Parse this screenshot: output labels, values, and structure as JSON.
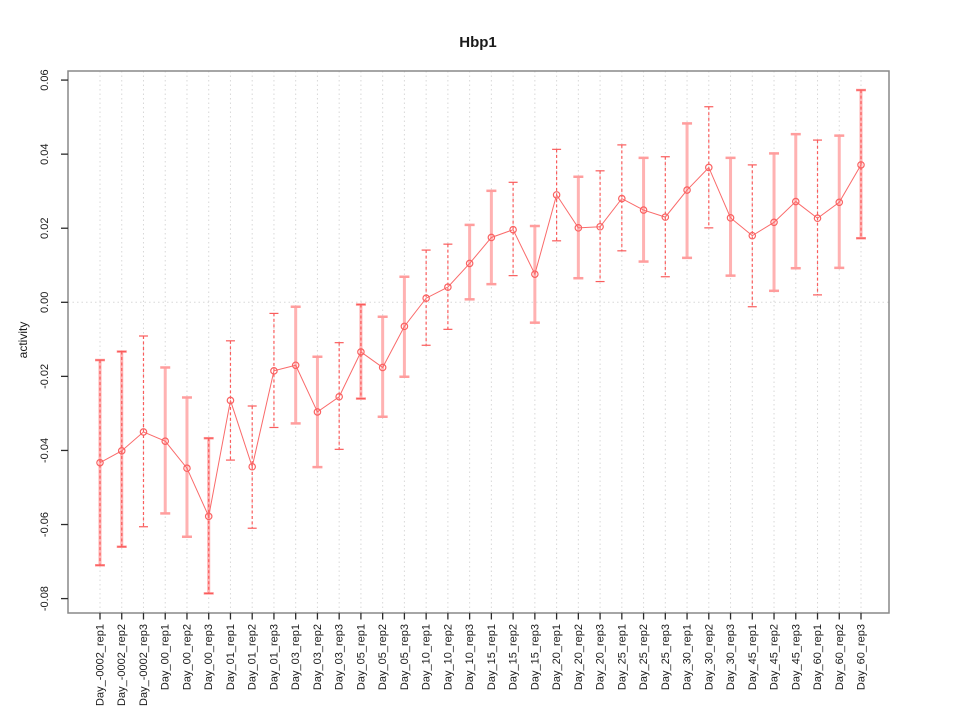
{
  "chart_data": {
    "type": "line",
    "title": "Hbp1",
    "xlabel": "",
    "ylabel": "activity",
    "ylim": [
      -0.085,
      0.063
    ],
    "ytick_labels": [
      "0.06",
      "0.04",
      "0.02",
      "0.00",
      "-0.02",
      "-0.04",
      "-0.06",
      "-0.08"
    ],
    "ytick_values": [
      0.06,
      0.04,
      0.02,
      0.0,
      -0.02,
      -0.04,
      -0.06,
      -0.08
    ],
    "grid": "vertical dotted gridline at every category; horizontal dotted line at y=0",
    "legend": "none",
    "categories": [
      "Day_-0002_rep1",
      "Day_-0002_rep2",
      "Day_-0002_rep3",
      "Day_00_rep1",
      "Day_00_rep2",
      "Day_00_rep3",
      "Day_01_rep1",
      "Day_01_rep2",
      "Day_01_rep3",
      "Day_03_rep1",
      "Day_03_rep2",
      "Day_03_rep3",
      "Day_05_rep1",
      "Day_05_rep2",
      "Day_05_rep3",
      "Day_10_rep1",
      "Day_10_rep2",
      "Day_10_rep3",
      "Day_15_rep1",
      "Day_15_rep2",
      "Day_15_rep3",
      "Day_20_rep1",
      "Day_20_rep2",
      "Day_20_rep3",
      "Day_25_rep1",
      "Day_25_rep2",
      "Day_25_rep3",
      "Day_30_rep1",
      "Day_30_rep2",
      "Day_30_rep3",
      "Day_45_rep1",
      "Day_45_rep2",
      "Day_45_rep3",
      "Day_60_rep1",
      "Day_60_rep2",
      "Day_60_rep3"
    ],
    "series": [
      {
        "name": "activity",
        "marker": "open-circle",
        "values": [
          -0.0433,
          -0.0401,
          -0.035,
          -0.0375,
          -0.0448,
          -0.0578,
          -0.0265,
          -0.0444,
          -0.0185,
          -0.017,
          -0.0296,
          -0.0255,
          -0.0134,
          -0.0176,
          -0.0065,
          0.0011,
          0.0041,
          0.0105,
          0.0175,
          0.0196,
          0.0076,
          0.029,
          0.0201,
          0.0204,
          0.028,
          0.0249,
          0.023,
          0.0303,
          0.0364,
          0.0228,
          0.018,
          0.0216,
          0.0272,
          0.0227,
          0.027,
          0.0371
        ],
        "error_low": [
          -0.071,
          -0.066,
          -0.0606,
          -0.057,
          -0.0633,
          -0.0786,
          -0.0426,
          -0.061,
          -0.0338,
          -0.0327,
          -0.0445,
          -0.0397,
          -0.026,
          -0.0309,
          -0.0201,
          -0.0116,
          -0.0073,
          0.0008,
          0.0049,
          0.0072,
          -0.0055,
          0.0166,
          0.0065,
          0.0056,
          0.0139,
          0.011,
          0.0069,
          0.012,
          0.0201,
          0.0072,
          -0.0012,
          0.0031,
          0.0092,
          0.002,
          0.0093,
          0.0173
        ],
        "error_high": [
          -0.0156,
          -0.0133,
          -0.0091,
          -0.0176,
          -0.0257,
          -0.0367,
          -0.0104,
          -0.028,
          -0.003,
          -0.0012,
          -0.0147,
          -0.0109,
          -0.0006,
          -0.0039,
          0.0069,
          0.0141,
          0.0157,
          0.0209,
          0.0301,
          0.0324,
          0.0206,
          0.0413,
          0.0339,
          0.0355,
          0.0425,
          0.039,
          0.0393,
          0.0483,
          0.0528,
          0.039,
          0.0371,
          0.0402,
          0.0454,
          0.0438,
          0.045,
          0.0573
        ],
        "bar_styles": [
          "both",
          "both",
          "dash",
          "pink",
          "pink",
          "both",
          "dash",
          "dash",
          "dash",
          "pink",
          "pink",
          "dash",
          "both",
          "pink",
          "pink",
          "dash",
          "dash",
          "pink",
          "pink",
          "dash",
          "pink",
          "dash",
          "pink",
          "dash",
          "dash",
          "pink",
          "dash",
          "pink",
          "dash",
          "pink",
          "dash",
          "pink",
          "pink",
          "dash",
          "pink",
          "both"
        ]
      }
    ],
    "colors": {
      "line": "#fa6a6a",
      "point": "#fa6262",
      "bar_dash": "#fa5c5c",
      "bar_pink": "#ffb2b2",
      "cap_pink": "#ff9d9d",
      "grid": "#d8d8d8",
      "box": "#898989",
      "tick": "#2b2b2b",
      "text": "#1a1a1a",
      "background": "#ffffff"
    }
  }
}
